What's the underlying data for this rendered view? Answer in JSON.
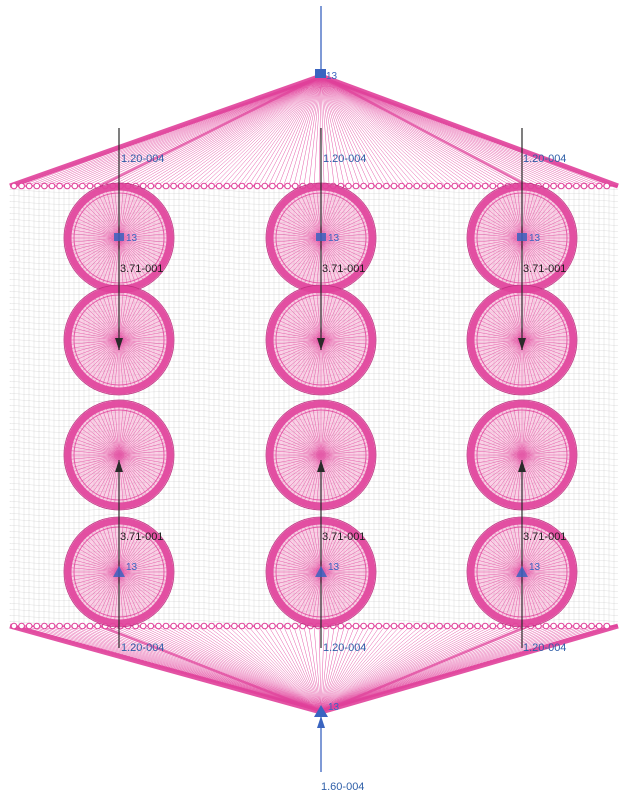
{
  "colors": {
    "mesh": "#e0409a",
    "mesh_light": "#f07ab8",
    "grid": "#b4b4b4",
    "arrow_blue": "#3a64c0",
    "arrow_dark": "#2a2a2a",
    "label_blue": "#2f5fa8",
    "label_dark": "#1e1e1e"
  },
  "labels": {
    "top_node": "13",
    "bottom_node": "13",
    "circle_node": "13",
    "upper_load": "1.20-004",
    "lower_load": "1.20-004",
    "top_circle_load": "3.71-001",
    "bottom_circle_load": "3.71-001",
    "bottom_main_load": "1.60-004"
  }
}
